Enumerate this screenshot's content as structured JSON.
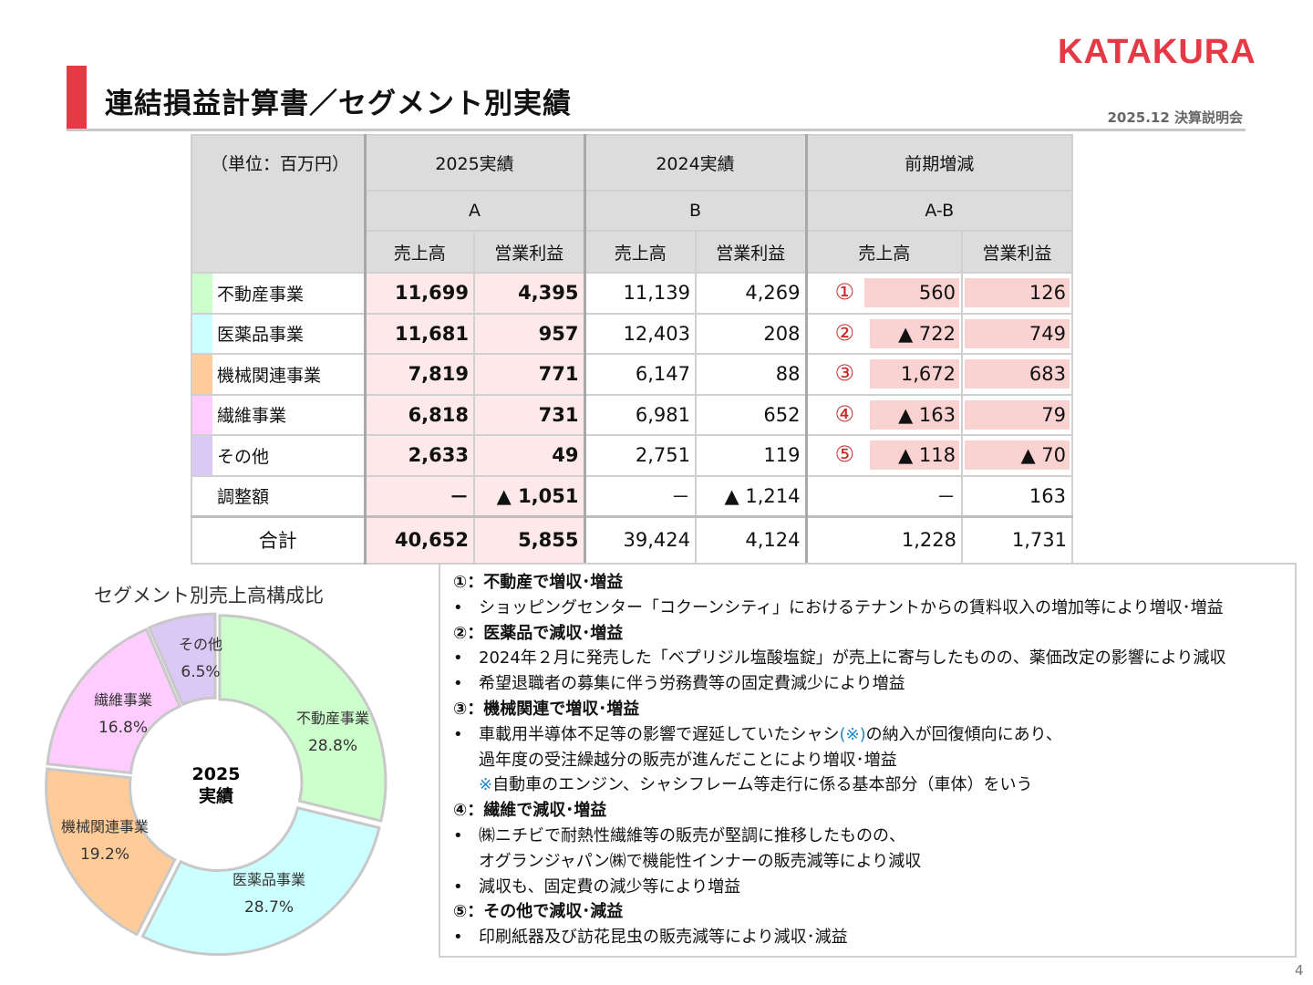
{
  "header": {
    "title": "連結損益計算書／セグメント別実績",
    "logo": "KATAKURA",
    "event": "2025.12 決算説明会",
    "brand_color": "#e63946"
  },
  "table": {
    "unit": "（単位：百万円）",
    "groups": [
      "2025実績",
      "2024実績",
      "前期増減"
    ],
    "subgroups": [
      "A",
      "B",
      "A-B"
    ],
    "columns": [
      "売上高",
      "営業利益",
      "売上高",
      "営業利益",
      "売上高",
      "営業利益"
    ],
    "rows": [
      {
        "label": "不動産事業",
        "color": "#ccffcc",
        "marker": "①",
        "values": [
          "11,699",
          "4,395",
          "11,139",
          "4,269",
          "560",
          "126"
        ]
      },
      {
        "label": "医薬品事業",
        "color": "#ccffff",
        "marker": "②",
        "values": [
          "11,681",
          "957",
          "12,403",
          "208",
          "▲ 722",
          "749"
        ]
      },
      {
        "label": "機械関連事業",
        "color": "#ffcc99",
        "marker": "③",
        "values": [
          "7,819",
          "771",
          "6,147",
          "88",
          "1,672",
          "683"
        ]
      },
      {
        "label": "繊維事業",
        "color": "#ffccff",
        "marker": "④",
        "values": [
          "6,818",
          "731",
          "6,981",
          "652",
          "▲ 163",
          "79"
        ]
      },
      {
        "label": "その他",
        "color": "#dcc8f5",
        "marker": "⑤",
        "values": [
          "2,633",
          "49",
          "2,751",
          "119",
          "▲ 118",
          "▲ 70"
        ]
      },
      {
        "label": "調整額",
        "color": "#ffffff",
        "marker": "",
        "values": [
          "－",
          "▲ 1,051",
          "－",
          "▲ 1,214",
          "－",
          "163"
        ]
      }
    ],
    "total": {
      "label": "合計",
      "values": [
        "40,652",
        "5,855",
        "39,424",
        "4,124",
        "1,228",
        "1,731"
      ]
    }
  },
  "chart_data": {
    "type": "pie",
    "donut": true,
    "title": "セグメント別売上高構成比",
    "center_label": [
      "2025",
      "実績"
    ],
    "categories": [
      "不動産事業",
      "医薬品事業",
      "機械関連事業",
      "繊維事業",
      "その他"
    ],
    "values": [
      28.8,
      28.7,
      19.2,
      16.8,
      6.5
    ],
    "labels": [
      "28.8%",
      "28.7%",
      "19.2%",
      "16.8%",
      "6.5%"
    ],
    "colors": [
      "#ccffcc",
      "#ccffff",
      "#ffcc99",
      "#ffccff",
      "#dcc8f5"
    ]
  },
  "notes": [
    {
      "heading": "①：不動産で増収･増益",
      "bullets": [
        [
          "ショッピングセンター「コクーンシティ」におけるテナントからの賃料収入の増加等により増収･増益"
        ]
      ]
    },
    {
      "heading": "②：医薬品で減収･増益",
      "bullets": [
        [
          "2024年２月に発売した「ベプリジル塩酸塩錠」が売上に寄与したものの、薬価改定の影響により減収"
        ],
        [
          "希望退職者の募集に伴う労務費等の固定費減少により増益"
        ]
      ]
    },
    {
      "heading": "③：機械関連で増収･増益",
      "bullets": [
        [
          "車載用半導体不足等の影響で遅延していたシャシ",
          "(※)",
          "の納入が回復傾向にあり、",
          "過年度の受注繰越分の販売が進んだことにより増収･増益",
          "※",
          "自動車のエンジン、シャシフレーム等走行に係る基本部分（車体）をいう"
        ]
      ]
    },
    {
      "heading": "④：繊維で減収･増益",
      "bullets": [
        [
          "㈱ニチビで耐熱性繊維等の販売が堅調に推移したものの、",
          "オグランジャパン㈱で機能性インナーの販売減等により減収"
        ],
        [
          "減収も、固定費の減少等により増益"
        ]
      ]
    },
    {
      "heading": "⑤：その他で減収･減益",
      "bullets": [
        [
          "印刷紙器及び訪花昆虫の販売減等により減収･減益"
        ]
      ]
    }
  ],
  "page_number": "4"
}
